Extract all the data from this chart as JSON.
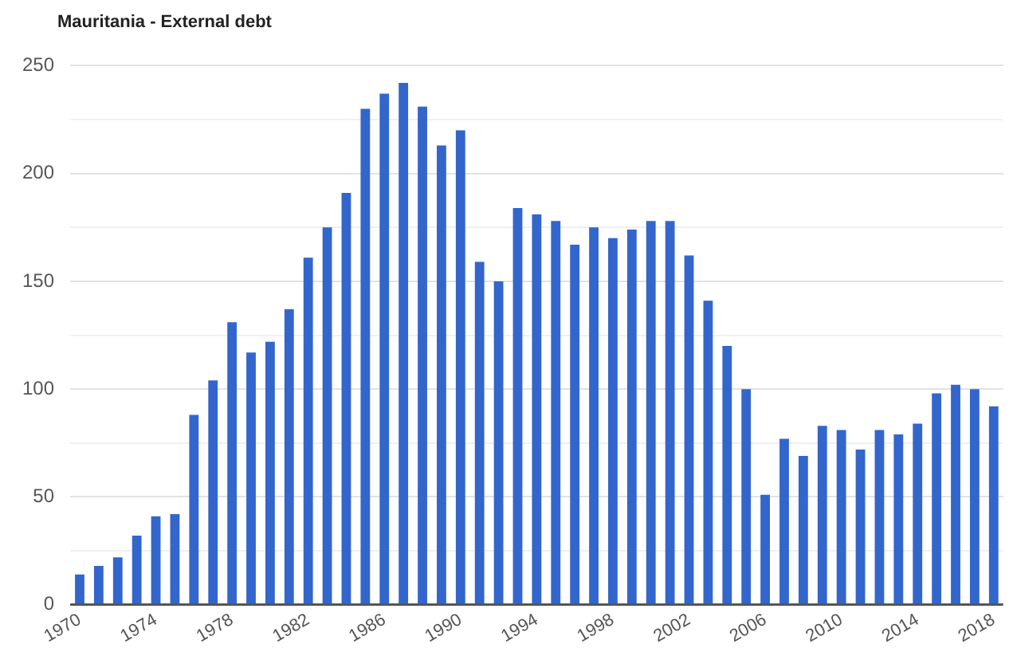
{
  "chart_data": {
    "type": "bar",
    "title": "Mauritania - External debt",
    "categories": [
      "1970",
      null,
      null,
      null,
      "1974",
      null,
      null,
      null,
      "1978",
      null,
      null,
      null,
      "1982",
      null,
      null,
      null,
      "1986",
      null,
      null,
      null,
      "1990",
      null,
      null,
      null,
      "1994",
      null,
      null,
      null,
      "1998",
      null,
      null,
      null,
      "2002",
      null,
      null,
      null,
      "2006",
      null,
      null,
      null,
      "2010",
      null,
      null,
      null,
      "2014",
      null,
      null,
      null,
      "2018"
    ],
    "values": [
      14,
      18,
      22,
      32,
      41,
      42,
      88,
      104,
      131,
      117,
      122,
      137,
      161,
      175,
      191,
      230,
      237,
      242,
      231,
      213,
      220,
      159,
      150,
      184,
      181,
      178,
      167,
      175,
      170,
      174,
      178,
      178,
      162,
      141,
      120,
      100,
      51,
      77,
      69,
      83,
      81,
      72,
      81,
      79,
      84,
      98,
      102,
      100,
      92
    ],
    "color": "#3366cc",
    "ylim": [
      0,
      250
    ],
    "yticks": [
      0,
      {
        "value": 25,
        "label": null
      },
      50,
      {
        "value": 75,
        "label": null
      },
      100,
      {
        "value": 125,
        "label": null
      },
      150,
      {
        "value": 175,
        "label": null
      },
      200,
      {
        "value": 225,
        "label": null
      },
      250
    ],
    "grid": "y"
  }
}
